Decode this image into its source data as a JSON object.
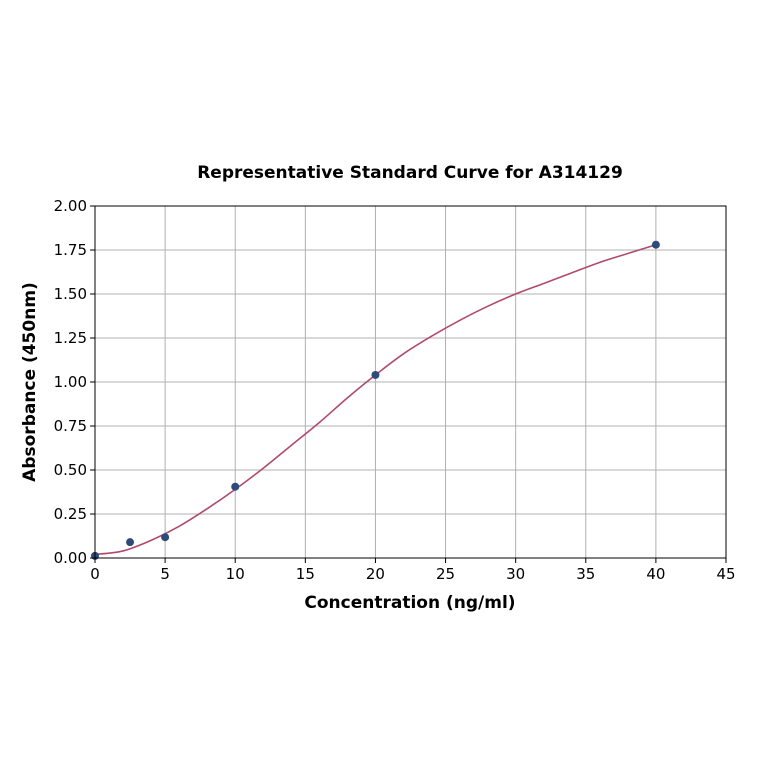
{
  "chart_data": {
    "type": "scatter",
    "title": "Representative Standard Curve for A314129",
    "xlabel": "Concentration (ng/ml)",
    "ylabel": "Absorbance (450nm)",
    "xlim": [
      0,
      45
    ],
    "ylim": [
      0,
      2
    ],
    "xticks": [
      0,
      5,
      10,
      15,
      20,
      25,
      30,
      35,
      40,
      45
    ],
    "xtick_labels": [
      "0",
      "5",
      "10",
      "15",
      "20",
      "25",
      "30",
      "35",
      "40",
      "45"
    ],
    "yticks": [
      0,
      0.25,
      0.5,
      0.75,
      1.0,
      1.25,
      1.5,
      1.75,
      2.0
    ],
    "ytick_labels": [
      "0.00",
      "0.25",
      "0.50",
      "0.75",
      "1.00",
      "1.25",
      "1.50",
      "1.75",
      "2.00"
    ],
    "grid": true,
    "points": {
      "x": [
        0,
        2.5,
        5,
        10,
        20,
        40
      ],
      "y": [
        0.012,
        0.09,
        0.118,
        0.405,
        1.04,
        1.78
      ],
      "color": "#2e4a7a"
    },
    "fit_curve": {
      "x": [
        0,
        2,
        4,
        6,
        8,
        10,
        12,
        14,
        16,
        18,
        20,
        22,
        24,
        26,
        28,
        30,
        32,
        34,
        36,
        38,
        40
      ],
      "y": [
        0.02,
        0.04,
        0.1,
        0.18,
        0.28,
        0.39,
        0.51,
        0.64,
        0.77,
        0.91,
        1.04,
        1.16,
        1.26,
        1.35,
        1.43,
        1.5,
        1.56,
        1.62,
        1.68,
        1.73,
        1.78
      ],
      "color": "#b04a6e"
    }
  }
}
